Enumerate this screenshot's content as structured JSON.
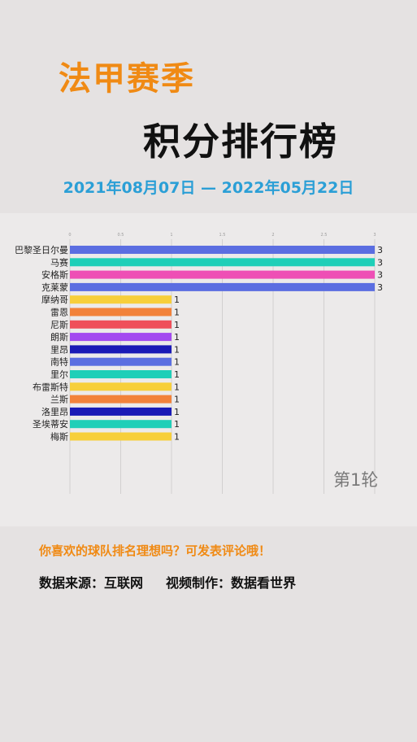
{
  "header": {
    "title": "法甲赛季",
    "subtitle": "积分排行榜",
    "date_range": "2021年08月07日 — 2022年05月22日"
  },
  "round_label": "第1轮",
  "footer": {
    "note": "你喜欢的球队排名理想吗？可发表评论哦！",
    "source": "数据来源：互联网",
    "producer": "视频制作：数据看世界"
  },
  "chart_data": {
    "type": "bar",
    "orientation": "horizontal",
    "categories": [
      "巴黎圣日尔曼",
      "马赛",
      "安格斯",
      "克莱蒙",
      "摩纳哥",
      "雷恩",
      "尼斯",
      "朗斯",
      "里昂",
      "南特",
      "里尔",
      "布雷斯特",
      "兰斯",
      "洛里昂",
      "圣埃蒂安",
      "梅斯"
    ],
    "values": [
      3,
      3,
      3,
      3,
      1,
      1,
      1,
      1,
      1,
      1,
      1,
      1,
      1,
      1,
      1,
      1
    ],
    "colors": [
      "#5b6ee1",
      "#1fcfb8",
      "#ee4fb5",
      "#5b6ee1",
      "#f7cf3a",
      "#f2823a",
      "#ef4f5a",
      "#a349f0",
      "#1a1ab6",
      "#5b6ee1",
      "#1fcfb8",
      "#f7cf3a",
      "#f2823a",
      "#1a1ab6",
      "#1fcfb8",
      "#f7cf3a"
    ],
    "xlim": [
      0,
      3
    ],
    "ticks": [
      "0",
      "0.5",
      "1",
      "1.5",
      "2",
      "2.5",
      "3"
    ],
    "grid": true
  }
}
